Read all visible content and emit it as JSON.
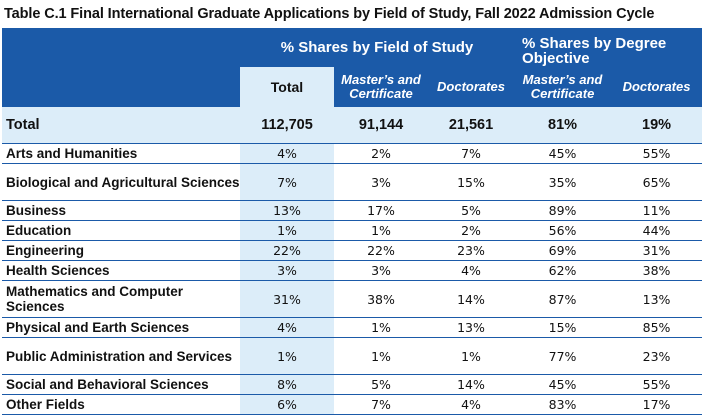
{
  "title": "Table C.1 Final International Graduate Applications by Field of Study, Fall 2022 Admission Cycle",
  "headers": {
    "group_field": "% Shares by Field of Study",
    "group_degree": "% Shares by Degree Objective",
    "total": "Total",
    "masters_1": "Master’s and",
    "masters_2": "Certificate",
    "doctorates": "Doctorates",
    "masters2_1": "Master’s and",
    "masters2_2": "Certificate",
    "doctorates2": "Doctorates"
  },
  "total_row": {
    "label": "Total",
    "total": "112,705",
    "masters": "91,144",
    "doctorates": "21,561",
    "share_masters": "81%",
    "share_doctorates": "19%"
  },
  "rows": [
    {
      "label": "Arts and Humanities",
      "total": "4%",
      "masters": "2%",
      "doctorates": "7%",
      "share_masters": "45%",
      "share_doctorates": "55%"
    },
    {
      "label": "Biological and Agricultural Sciences",
      "total": "7%",
      "masters": "3%",
      "doctorates": "15%",
      "share_masters": "35%",
      "share_doctorates": "65%"
    },
    {
      "label": "Business",
      "total": "13%",
      "masters": "17%",
      "doctorates": "5%",
      "share_masters": "89%",
      "share_doctorates": "11%"
    },
    {
      "label": "Education",
      "total": "1%",
      "masters": "1%",
      "doctorates": "2%",
      "share_masters": "56%",
      "share_doctorates": "44%"
    },
    {
      "label": "Engineering",
      "total": "22%",
      "masters": "22%",
      "doctorates": "23%",
      "share_masters": "69%",
      "share_doctorates": "31%"
    },
    {
      "label": "Health Sciences",
      "total": "3%",
      "masters": "3%",
      "doctorates": "4%",
      "share_masters": "62%",
      "share_doctorates": "38%"
    },
    {
      "label": "Mathematics and Computer Sciences",
      "total": "31%",
      "masters": "38%",
      "doctorates": "14%",
      "share_masters": "87%",
      "share_doctorates": "13%"
    },
    {
      "label": "Physical and Earth Sciences",
      "total": "4%",
      "masters": "1%",
      "doctorates": "13%",
      "share_masters": "15%",
      "share_doctorates": "85%"
    },
    {
      "label": "Public Administration and Services",
      "total": "1%",
      "masters": "1%",
      "doctorates": "1%",
      "share_masters": "77%",
      "share_doctorates": "23%"
    },
    {
      "label": "Social and Behavioral Sciences",
      "total": "8%",
      "masters": "5%",
      "doctorates": "14%",
      "share_masters": "45%",
      "share_doctorates": "55%"
    },
    {
      "label": "Other Fields",
      "total": "6%",
      "masters": "7%",
      "doctorates": "4%",
      "share_masters": "83%",
      "share_doctorates": "17%"
    }
  ],
  "colors": {
    "header_blue": "#1b5aa8",
    "total_column_tint": "#dcedf9"
  }
}
